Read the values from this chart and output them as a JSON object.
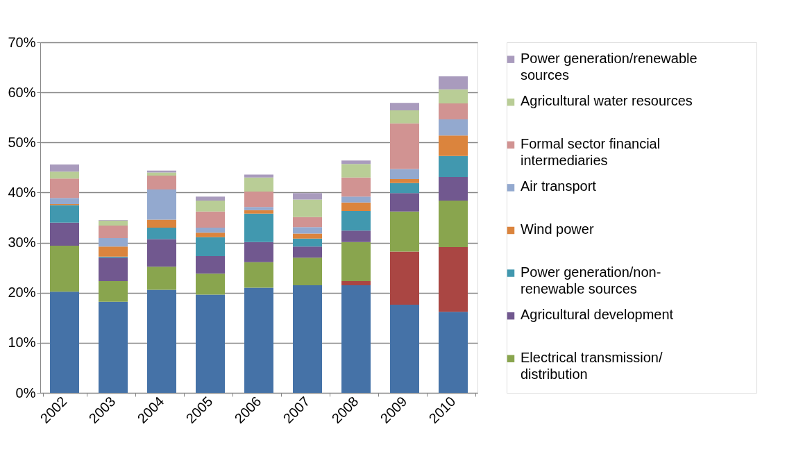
{
  "chart_data": {
    "type": "bar",
    "stacked": true,
    "categories": [
      "2002",
      "2003",
      "2004",
      "2005",
      "2006",
      "2007",
      "2008",
      "2009",
      "2010"
    ],
    "series": [
      {
        "color": "#4572a7",
        "values": [
          20.2,
          18.2,
          20.6,
          19.6,
          21.0,
          21.5,
          21.5,
          17.6,
          16.2
        ]
      },
      {
        "color": "#aa4643",
        "values": [
          0,
          0,
          0,
          0,
          0,
          0,
          0.8,
          10.6,
          12.9
        ]
      },
      {
        "name": "Electrical transmission/ distribution",
        "color": "#89a54e",
        "values": [
          9.2,
          4.1,
          4.6,
          4.2,
          5.1,
          5.5,
          7.8,
          8.0,
          9.3
        ]
      },
      {
        "name": "Agricultural development",
        "color": "#71588f",
        "values": [
          4.6,
          4.7,
          5.5,
          3.5,
          4.0,
          2.2,
          2.3,
          3.7,
          4.7
        ]
      },
      {
        "name": "Power generation/non-renewable sources",
        "color": "#4198af",
        "values": [
          3.5,
          0.2,
          2.3,
          3.8,
          5.7,
          1.6,
          3.9,
          2.0,
          4.2
        ]
      },
      {
        "name": "Wind power",
        "color": "#db843d",
        "values": [
          0.2,
          2.0,
          1.6,
          0.9,
          0.7,
          1.0,
          1.7,
          0.8,
          4.1
        ]
      },
      {
        "name": "Air transport",
        "color": "#93a9cf",
        "values": [
          1.2,
          1.7,
          6.0,
          1.0,
          0.6,
          1.3,
          1.2,
          2.0,
          3.2
        ]
      },
      {
        "name": "Formal sector financial intermediaries",
        "color": "#d19392",
        "values": [
          3.9,
          2.5,
          2.8,
          3.2,
          3.1,
          2.0,
          3.8,
          9.1,
          3.2
        ]
      },
      {
        "name": "Agricultural water resources",
        "color": "#b9cd96",
        "values": [
          1.4,
          1.0,
          0.6,
          2.2,
          2.8,
          3.5,
          2.7,
          2.6,
          2.8
        ]
      },
      {
        "name": "Power generation/renewable sources",
        "color": "#a99bbd",
        "values": [
          1.4,
          0.1,
          0.4,
          0.8,
          0.6,
          1.3,
          0.7,
          1.5,
          2.6
        ]
      }
    ],
    "ylim": [
      0,
      70
    ],
    "yticks": [
      {
        "value": 0,
        "label": "0%"
      },
      {
        "value": 10,
        "label": "10%"
      },
      {
        "value": 20,
        "label": "20%"
      },
      {
        "value": 30,
        "label": "30%"
      },
      {
        "value": 40,
        "label": "40%"
      },
      {
        "value": 50,
        "label": "50%"
      },
      {
        "value": 60,
        "label": "60%"
      },
      {
        "value": 70,
        "label": "70%"
      }
    ],
    "grid": "y",
    "legend": "right"
  }
}
